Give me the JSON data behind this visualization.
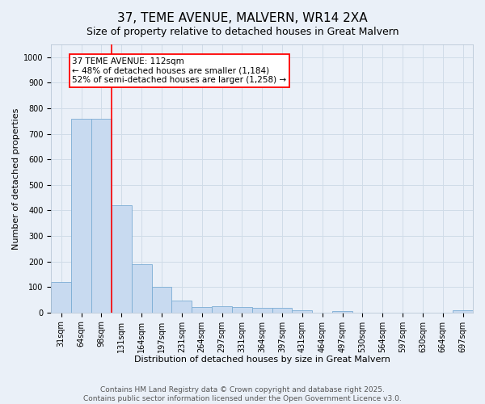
{
  "title": "37, TEME AVENUE, MALVERN, WR14 2XA",
  "subtitle": "Size of property relative to detached houses in Great Malvern",
  "xlabel": "Distribution of detached houses by size in Great Malvern",
  "ylabel": "Number of detached properties",
  "categories": [
    "31sqm",
    "64sqm",
    "98sqm",
    "131sqm",
    "164sqm",
    "197sqm",
    "231sqm",
    "264sqm",
    "297sqm",
    "331sqm",
    "364sqm",
    "397sqm",
    "431sqm",
    "464sqm",
    "497sqm",
    "530sqm",
    "564sqm",
    "597sqm",
    "630sqm",
    "664sqm",
    "697sqm"
  ],
  "values": [
    120,
    760,
    760,
    420,
    190,
    100,
    48,
    22,
    25,
    20,
    18,
    18,
    8,
    0,
    6,
    0,
    0,
    0,
    0,
    0,
    8
  ],
  "bar_color": "#c8daf0",
  "bar_edge_color": "#7badd4",
  "ylim": [
    0,
    1050
  ],
  "yticks": [
    0,
    100,
    200,
    300,
    400,
    500,
    600,
    700,
    800,
    900,
    1000
  ],
  "red_line_x": 2.5,
  "annotation_text": "37 TEME AVENUE: 112sqm\n← 48% of detached houses are smaller (1,184)\n52% of semi-detached houses are larger (1,258) →",
  "footer_line1": "Contains HM Land Registry data © Crown copyright and database right 2025.",
  "footer_line2": "Contains public sector information licensed under the Open Government Licence v3.0.",
  "background_color": "#eaf0f8",
  "grid_color": "#d0dce8",
  "title_fontsize": 11,
  "subtitle_fontsize": 9,
  "axis_label_fontsize": 8,
  "tick_fontsize": 7,
  "footer_fontsize": 6.5,
  "annotation_fontsize": 7.5
}
